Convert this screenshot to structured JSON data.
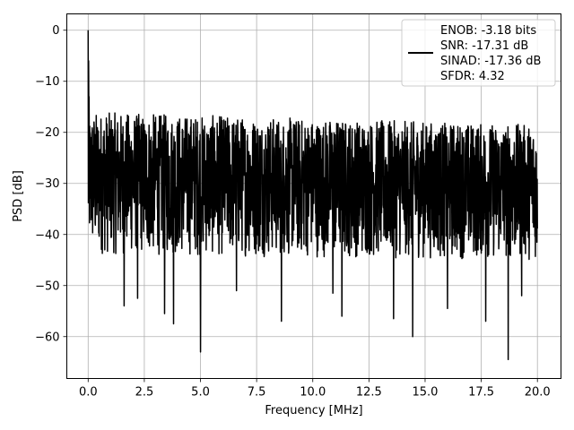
{
  "chart_data": {
    "type": "line",
    "title": "",
    "xlabel": "Frequency [MHz]",
    "ylabel": "PSD [dB]",
    "xlim": [
      -0.95,
      21.05
    ],
    "ylim": [
      -68.2,
      3.2
    ],
    "xticks": [
      0.0,
      2.5,
      5.0,
      7.5,
      10.0,
      12.5,
      15.0,
      17.5,
      20.0
    ],
    "xtick_labels": [
      "0.0",
      "2.5",
      "5.0",
      "7.5",
      "10.0",
      "12.5",
      "15.0",
      "17.5",
      "20.0"
    ],
    "yticks": [
      0,
      -10,
      -20,
      -30,
      -40,
      -50,
      -60
    ],
    "ytick_labels": [
      "0",
      "−10",
      "−20",
      "−30",
      "−40",
      "−50",
      "−60"
    ],
    "grid": true,
    "legend_position": "upper right",
    "legend_lines": [
      "ENOB: -3.18 bits",
      "SNR: -17.31 dB",
      "SINAD: -17.36 dB",
      "SFDR: 4.32"
    ],
    "line_color": "#000000",
    "series": [
      {
        "x_range": [
          0.0,
          20.0
        ],
        "num_points": 2000,
        "noise_band_db": [
          -44.0,
          -16.0
        ],
        "peaks": [
          {
            "x": 0.0,
            "y": 0.0
          },
          {
            "x": 0.02,
            "y": -6.0
          },
          {
            "x": 0.04,
            "y": -13.0
          }
        ],
        "deep_nulls": [
          {
            "x": 5.0,
            "y": -63.0
          },
          {
            "x": 18.7,
            "y": -64.5
          },
          {
            "x": 14.45,
            "y": -60.0
          },
          {
            "x": 3.8,
            "y": -57.5
          },
          {
            "x": 8.6,
            "y": -57.0
          },
          {
            "x": 3.4,
            "y": -55.5
          },
          {
            "x": 1.6,
            "y": -54.0
          },
          {
            "x": 11.3,
            "y": -56.0
          },
          {
            "x": 13.6,
            "y": -56.5
          },
          {
            "x": 17.7,
            "y": -57.0
          },
          {
            "x": 16.0,
            "y": -54.5
          },
          {
            "x": 2.2,
            "y": -52.5
          },
          {
            "x": 6.6,
            "y": -51.0
          },
          {
            "x": 10.9,
            "y": -51.5
          },
          {
            "x": 19.3,
            "y": -52.0
          }
        ]
      }
    ]
  }
}
